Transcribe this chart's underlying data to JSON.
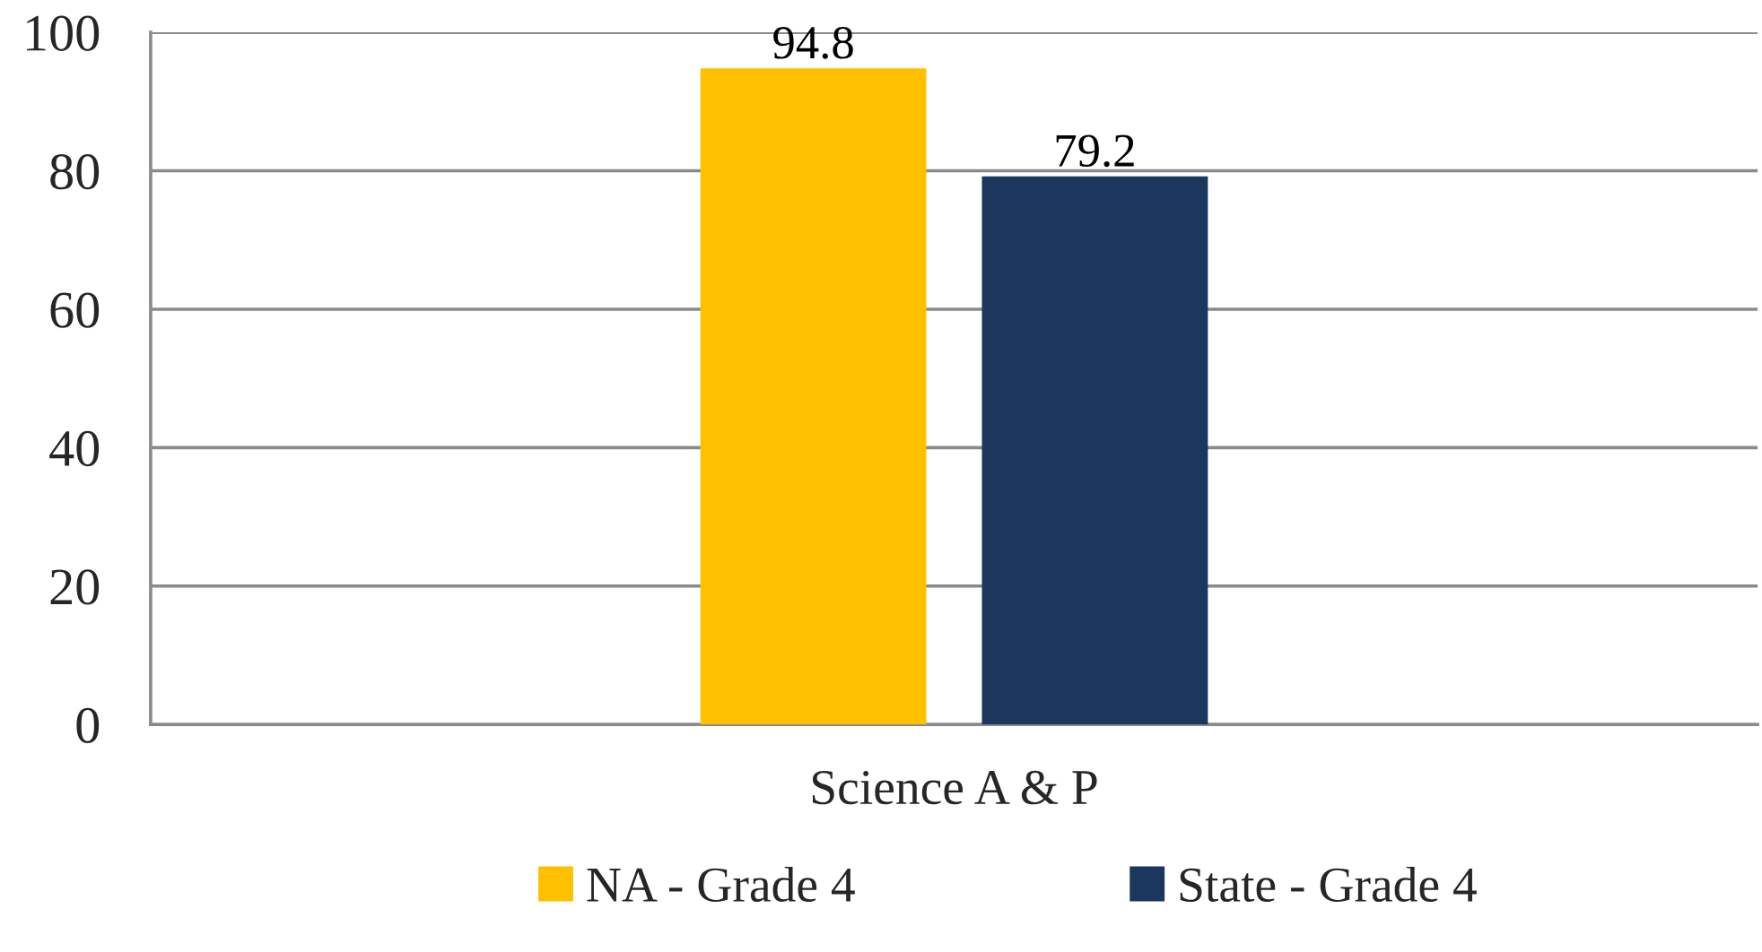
{
  "chart_data": {
    "type": "bar",
    "categories": [
      "Science A & P"
    ],
    "series": [
      {
        "name": "NA - Grade 4",
        "color": "#ffc000",
        "values": [
          94.8
        ]
      },
      {
        "name": "State - Grade 4",
        "color": "#1b375e",
        "values": [
          79.2
        ]
      }
    ],
    "ylim": [
      0,
      100
    ],
    "yticks": [
      0,
      20,
      40,
      60,
      80,
      100
    ],
    "grid": "y",
    "legend": "bottom",
    "data_labels": true
  }
}
